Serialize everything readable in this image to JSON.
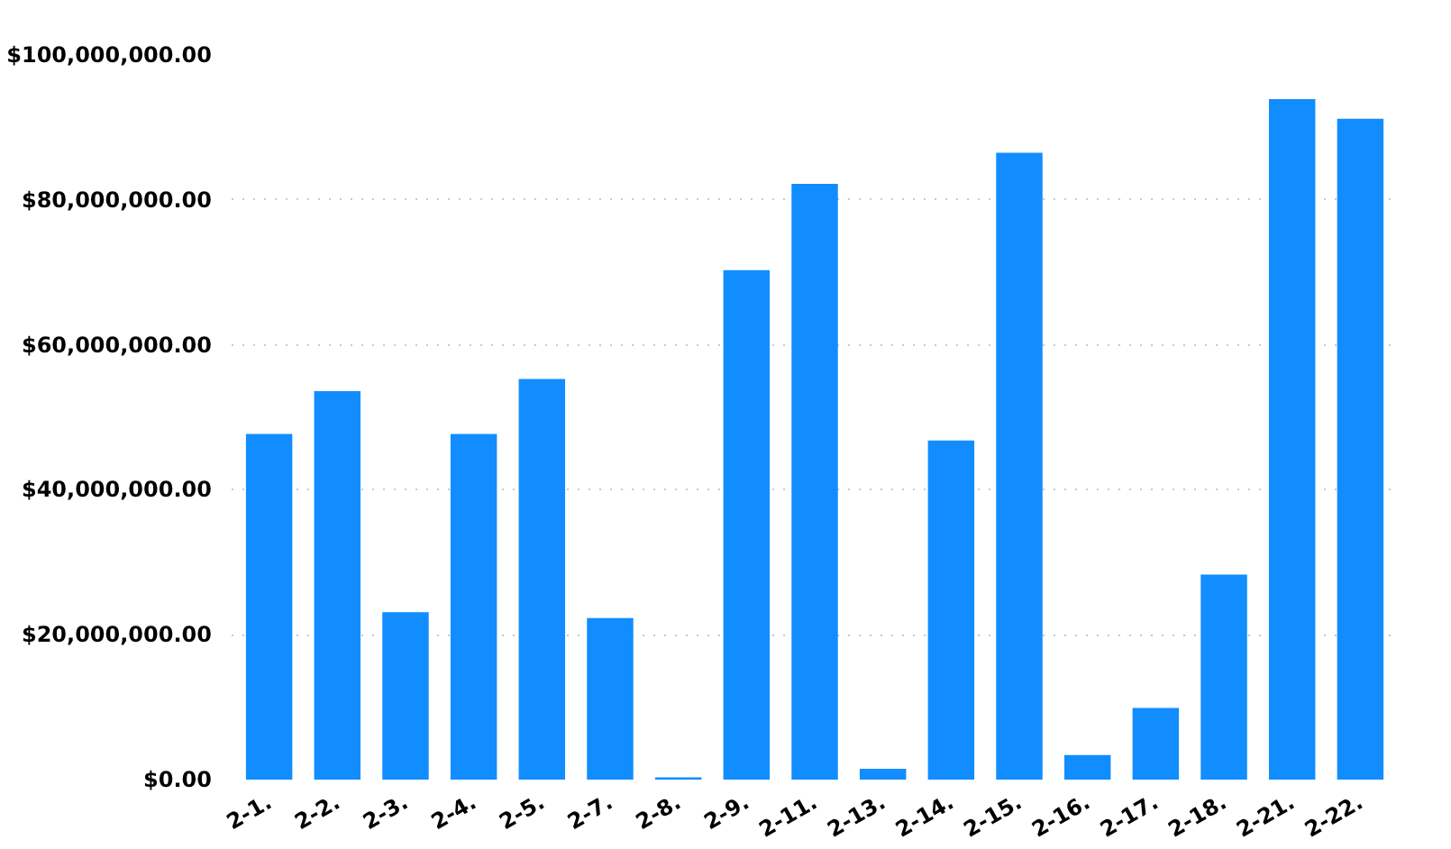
{
  "chart_data": {
    "type": "bar",
    "categories": [
      "2-1.",
      "2-2.",
      "2-3.",
      "2-4.",
      "2-5.",
      "2-7.",
      "2-8.",
      "2-9.",
      "2-11.",
      "2-13.",
      "2-14.",
      "2-15.",
      "2-16.",
      "2-17.",
      "2-18.",
      "2-21.",
      "2-22."
    ],
    "values": [
      47700000,
      53600000,
      23100000,
      47700000,
      55300000,
      22300000,
      300000,
      70300000,
      82200000,
      1500000,
      46800000,
      86500000,
      3400000,
      9900000,
      28300000,
      93900000,
      91200000
    ],
    "color": "#118dff",
    "ylim": [
      0,
      100000000
    ],
    "yticks": [
      {
        "value": 0,
        "label": "$0.00"
      },
      {
        "value": 20000000,
        "label": "$20,000,000.00"
      },
      {
        "value": 40000000,
        "label": "$40,000,000.00"
      },
      {
        "value": 60000000,
        "label": "$60,000,000.00"
      },
      {
        "value": 80000000,
        "label": "$80,000,000.00"
      },
      {
        "value": 100000000,
        "label": "$100,000,000.00"
      }
    ],
    "grid": "y"
  }
}
